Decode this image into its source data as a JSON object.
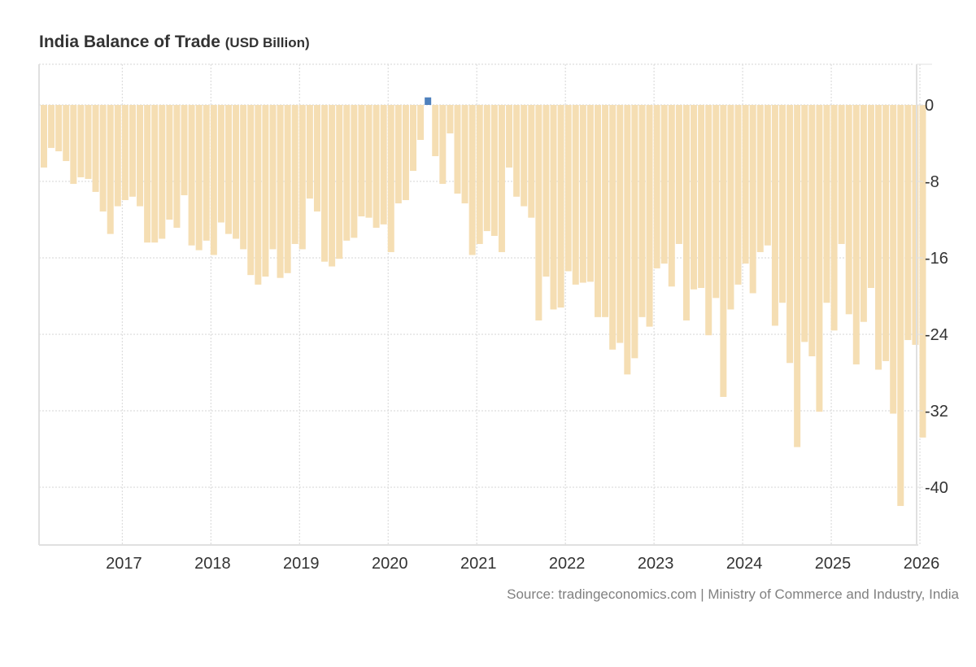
{
  "chart_data": {
    "type": "bar",
    "title": "India Balance of Trade",
    "unit": "(USD Billion)",
    "xlabel": "",
    "ylabel": "",
    "source": "Source: tradingeconomics.com | Ministry of Commerce and Industry, India",
    "frequency": "monthly",
    "start_period": "2016-02",
    "end_period": "2026-01",
    "ylim": [
      -46,
      4.3
    ],
    "y_ticks": [
      0,
      -8,
      -16,
      -24,
      -32,
      -40
    ],
    "y_tick_labels": [
      "0",
      "-8",
      "-16",
      "-24",
      "-32",
      "-40"
    ],
    "x_tick_labels": [
      "2017",
      "2018",
      "2019",
      "2020",
      "2021",
      "2022",
      "2023",
      "2024",
      "2025",
      "2026"
    ],
    "x_tick_month_index": [
      11,
      23,
      35,
      47,
      59,
      71,
      83,
      95,
      107,
      119
    ],
    "grid": true,
    "colors": {
      "negative": "#f5deb3",
      "positive": "#4f81bd",
      "grid": "#dddddd",
      "axis": "#e0e0e0",
      "text": "#333333",
      "source": "#808080"
    },
    "values": [
      -6.55,
      -4.5,
      -4.85,
      -5.87,
      -8.26,
      -7.57,
      -7.74,
      -9.1,
      -11.15,
      -13.5,
      -10.6,
      -9.96,
      -9.6,
      -10.6,
      -14.4,
      -14.4,
      -14.0,
      -12.0,
      -12.85,
      -9.45,
      -14.7,
      -15.2,
      -14.2,
      -15.7,
      -12.3,
      -13.5,
      -14.0,
      -15.1,
      -17.8,
      -18.8,
      -17.96,
      -15.1,
      -18.1,
      -17.6,
      -14.55,
      -15.1,
      -9.8,
      -11.15,
      -16.4,
      -16.9,
      -16.1,
      -14.2,
      -13.9,
      -11.66,
      -11.8,
      -12.85,
      -12.5,
      -15.4,
      -10.3,
      -9.96,
      -6.9,
      -3.66,
      0.79,
      -5.36,
      -8.26,
      -2.98,
      -9.28,
      -10.3,
      -15.7,
      -14.55,
      -13.2,
      -13.7,
      -15.4,
      -6.55,
      -9.6,
      -10.6,
      -11.8,
      -22.55,
      -17.96,
      -21.4,
      -21.2,
      -17.4,
      -18.8,
      -18.6,
      -18.5,
      -22.2,
      -22.2,
      -25.6,
      -24.9,
      -28.2,
      -26.5,
      -22.2,
      -23.2,
      -17.1,
      -16.6,
      -19.0,
      -14.55,
      -22.55,
      -19.3,
      -19.15,
      -24.1,
      -20.2,
      -30.55,
      -21.4,
      -18.8,
      -16.6,
      -19.7,
      -15.4,
      -14.7,
      -23.1,
      -20.7,
      -27.0,
      -35.8,
      -24.8,
      -26.3,
      -32.1,
      -20.7,
      -23.6,
      -14.55,
      -21.9,
      -27.15,
      -22.7,
      -19.15,
      -27.7,
      -26.8,
      -32.3,
      -41.96,
      -24.6,
      -25.1,
      -34.8
    ]
  }
}
